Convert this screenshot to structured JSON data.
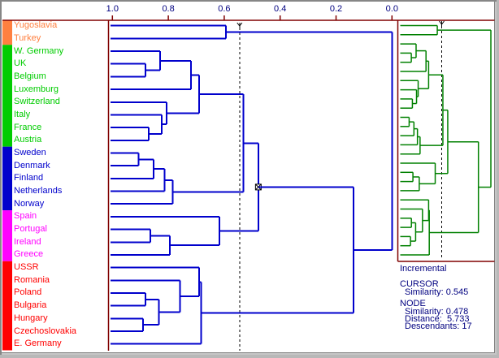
{
  "window_title": "",
  "colors": {
    "frame_gray": "#868686",
    "plot_border_maroon": "#800000",
    "dendrogram_blue": "#0000CC",
    "mini_dendrogram_green": "#008000",
    "cursor_black": "#000000",
    "info_text_navy": "#000080",
    "axis_label_navy": "#000080",
    "group_colors": {
      "orange": "#FF8040",
      "green": "#00CC00",
      "blue": "#0000CC",
      "magenta": "#FF00FF",
      "red": "#FF0000"
    }
  },
  "axis": {
    "tick_labels": [
      "1.0",
      "0.8",
      "0.6",
      "0.4",
      "0.2",
      "0.0"
    ],
    "tick_values": [
      1.0,
      0.8,
      0.6,
      0.4,
      0.2,
      0.0
    ]
  },
  "info_panel": {
    "method": "Incremental",
    "cursor": {
      "heading": "CURSOR",
      "similarity_label": "Similarity:",
      "similarity_value": "0.545"
    },
    "node": {
      "heading": "NODE",
      "similarity_label": "Similarity:",
      "similarity_value": "0.478",
      "distance_label": "Distance:",
      "distance_value": "5.733",
      "descendants_label": "Descendants:",
      "descendants_value": "17"
    }
  },
  "chart_data": {
    "type": "dendrogram",
    "orientation": "horizontal, similarity axis 1.0 (left) to 0.0 (right)",
    "axis_range": [
      1.0,
      0.0
    ],
    "cursor_similarity": 0.545,
    "marked_node": {
      "similarity": 0.478,
      "distance": 5.733,
      "descendants": 17
    },
    "leaves": [
      {
        "label": "Yugoslavia",
        "group": "orange"
      },
      {
        "label": "Turkey",
        "group": "orange"
      },
      {
        "label": "W. Germany",
        "group": "green"
      },
      {
        "label": "UK",
        "group": "green"
      },
      {
        "label": "Belgium",
        "group": "green"
      },
      {
        "label": "Luxemburg",
        "group": "green"
      },
      {
        "label": "Switzerland",
        "group": "green"
      },
      {
        "label": "Italy",
        "group": "green"
      },
      {
        "label": "France",
        "group": "green"
      },
      {
        "label": "Austria",
        "group": "green"
      },
      {
        "label": "Sweden",
        "group": "blue"
      },
      {
        "label": "Denmark",
        "group": "blue"
      },
      {
        "label": "Finland",
        "group": "blue"
      },
      {
        "label": "Netherlands",
        "group": "blue"
      },
      {
        "label": "Norway",
        "group": "blue"
      },
      {
        "label": "Spain",
        "group": "magenta"
      },
      {
        "label": "Portugal",
        "group": "magenta"
      },
      {
        "label": "Ireland",
        "group": "magenta"
      },
      {
        "label": "Greece",
        "group": "magenta"
      },
      {
        "label": "USSR",
        "group": "red"
      },
      {
        "label": "Romania",
        "group": "red"
      },
      {
        "label": "Poland",
        "group": "red"
      },
      {
        "label": "Bulgaria",
        "group": "red"
      },
      {
        "label": "Hungary",
        "group": "red"
      },
      {
        "label": "Czechoslovakia",
        "group": "red"
      },
      {
        "label": "E. Germany",
        "group": "red"
      }
    ],
    "tree": {
      "sim": 0.0,
      "children": [
        {
          "sim": 0.594,
          "children": [
            "Yugoslavia",
            "Turkey"
          ]
        },
        {
          "sim": 0.138,
          "children": [
            {
              "sim": 0.478,
              "marked": true,
              "children": [
                {
                  "sim": 0.532,
                  "children": [
                    {
                      "sim": 0.69,
                      "children": [
                        {
                          "sim": 0.719,
                          "children": [
                            {
                              "sim": 0.829,
                              "children": [
                                "W. Germany",
                                {
                                  "sim": 0.882,
                                  "children": [
                                    "UK",
                                    "Belgium"
                                  ]
                                }
                              ]
                            },
                            "Luxemburg"
                          ]
                        },
                        {
                          "sim": 0.806,
                          "children": [
                            "Switzerland",
                            {
                              "sim": 0.824,
                              "children": [
                                "Italy",
                                {
                                  "sim": 0.87,
                                  "children": [
                                    "France",
                                    "Austria"
                                  ]
                                }
                              ]
                            }
                          ]
                        }
                      ]
                    },
                    {
                      "sim": 0.785,
                      "children": [
                        {
                          "sim": 0.814,
                          "children": [
                            {
                              "sim": 0.853,
                              "children": [
                                {
                                  "sim": 0.906,
                                  "children": [
                                    "Sweden",
                                    "Denmark"
                                  ]
                                },
                                "Finland"
                              ]
                            },
                            "Netherlands"
                          ]
                        },
                        "Norway"
                      ]
                    }
                  ]
                },
                {
                  "sim": 0.617,
                  "children": [
                    "Spain",
                    {
                      "sim": 0.794,
                      "children": [
                        {
                          "sim": 0.864,
                          "children": [
                            "Portugal",
                            "Ireland"
                          ]
                        },
                        "Greece"
                      ]
                    }
                  ]
                }
              ]
            },
            {
              "sim": 0.683,
              "children": [
                {
                  "sim": 0.69,
                  "children": [
                    "USSR",
                    {
                      "sim": 0.758,
                      "children": [
                        "Romania",
                        {
                          "sim": 0.834,
                          "children": [
                            {
                              "sim": 0.881,
                              "children": [
                                "Poland",
                                "Bulgaria"
                              ]
                            },
                            {
                              "sim": 0.891,
                              "children": [
                                "Hungary",
                                "Czechoslovakia"
                              ]
                            }
                          ]
                        }
                      ]
                    }
                  ]
                },
                "E. Germany"
              ]
            }
          ]
        }
      ]
    }
  }
}
